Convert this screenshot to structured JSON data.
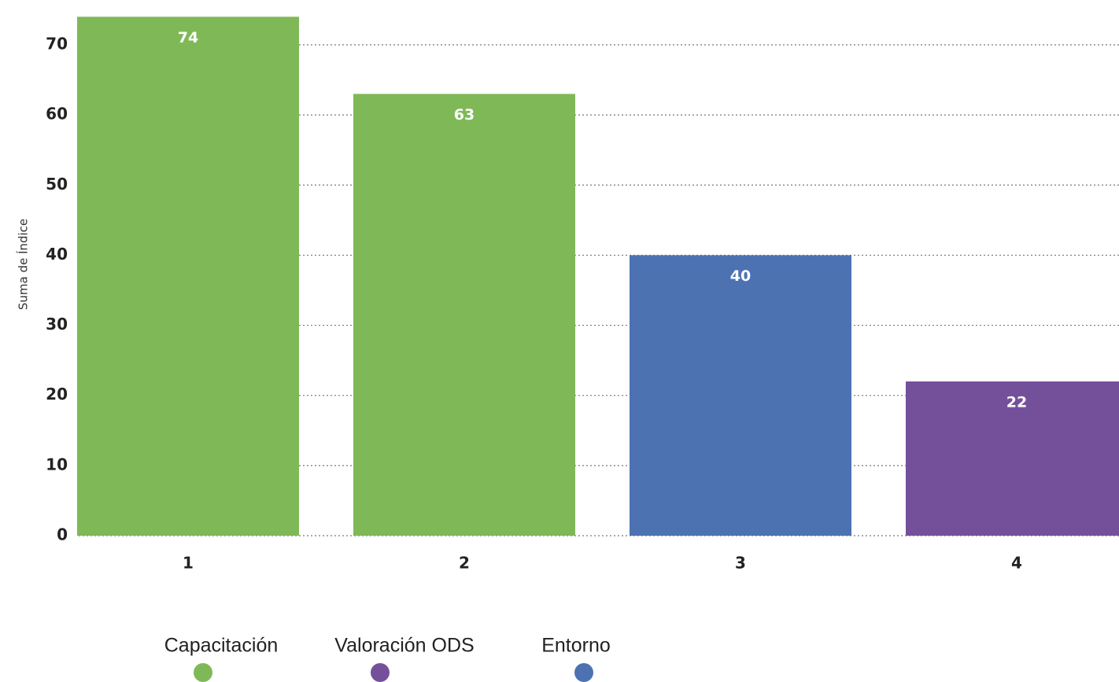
{
  "chart_data": {
    "type": "bar",
    "y_axis_label": "Suma de Índice",
    "categories": [
      "1",
      "2",
      "3",
      "4"
    ],
    "values": [
      74,
      63,
      40,
      22
    ],
    "colors": [
      "#7fb957",
      "#7fb957",
      "#4c72b2",
      "#74509b"
    ],
    "ylim": [
      0,
      75
    ],
    "yticks": [
      0,
      10,
      20,
      30,
      40,
      50,
      60,
      70
    ],
    "grid": true,
    "legend": [
      {
        "name": "Capacitación",
        "color": "#7fb957"
      },
      {
        "name": "Valoración ODS",
        "color": "#74509b"
      },
      {
        "name": "Entorno",
        "color": "#4c72b2"
      }
    ]
  }
}
